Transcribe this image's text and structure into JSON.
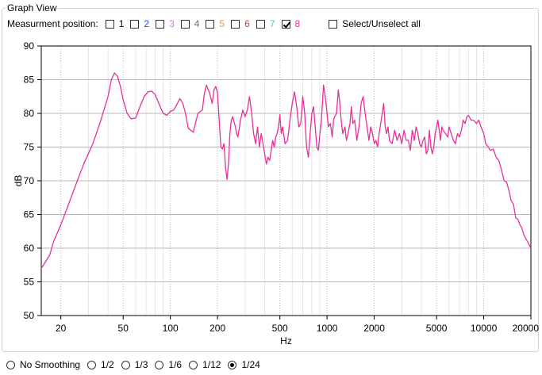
{
  "window": {
    "group_title": "Graph View"
  },
  "measurement": {
    "label": "Measurment position:",
    "positions": [
      {
        "label": "1",
        "color": "#000000",
        "checked": false
      },
      {
        "label": "2",
        "color": "#1f4fd6",
        "checked": false
      },
      {
        "label": "3",
        "color": "#c77fe0",
        "checked": false
      },
      {
        "label": "4",
        "color": "#2e9a2e",
        "checked": false
      },
      {
        "label": "5",
        "color": "#e6a020",
        "checked": false
      },
      {
        "label": "6",
        "color": "#e03030",
        "checked": false
      },
      {
        "label": "7",
        "color": "#40c8c8",
        "checked": false
      },
      {
        "label": "8",
        "color": "#e6309a",
        "checked": true
      }
    ],
    "select_all_label": "Select/Unselect all"
  },
  "smoothing": {
    "options": [
      "No Smoothing",
      "1/2",
      "1/3",
      "1/6",
      "1/12",
      "1/24"
    ],
    "selected": "1/24"
  },
  "chart_data": {
    "type": "line",
    "xscale": "log",
    "xlim": [
      15,
      20000
    ],
    "ylim": [
      50,
      90
    ],
    "xlabel": "Hz",
    "ylabel": "dB",
    "xticks": [
      20,
      50,
      100,
      200,
      500,
      1000,
      2000,
      5000,
      10000,
      20000
    ],
    "yticks": [
      50,
      55,
      60,
      65,
      70,
      75,
      80,
      85,
      90
    ],
    "grid": true,
    "series": [
      {
        "color": "#e6309a",
        "points": [
          [
            15,
            57
          ],
          [
            16,
            58
          ],
          [
            17,
            59
          ],
          [
            18,
            61
          ],
          [
            20,
            63.5
          ],
          [
            22,
            66
          ],
          [
            25,
            69.5
          ],
          [
            28,
            72.5
          ],
          [
            32,
            75.5
          ],
          [
            36,
            79
          ],
          [
            40,
            82.5
          ],
          [
            42,
            85
          ],
          [
            44,
            86
          ],
          [
            46,
            85.5
          ],
          [
            48,
            84
          ],
          [
            50,
            82
          ],
          [
            53,
            80
          ],
          [
            56,
            79.2
          ],
          [
            60,
            79.3
          ],
          [
            64,
            81
          ],
          [
            68,
            82.5
          ],
          [
            72,
            83.2
          ],
          [
            76,
            83.3
          ],
          [
            80,
            82.8
          ],
          [
            85,
            81.3
          ],
          [
            90,
            80
          ],
          [
            95,
            79.7
          ],
          [
            100,
            80.3
          ],
          [
            105,
            80.5
          ],
          [
            110,
            81.3
          ],
          [
            115,
            82.2
          ],
          [
            120,
            81.5
          ],
          [
            125,
            80
          ],
          [
            130,
            77.8
          ],
          [
            140,
            77.2
          ],
          [
            150,
            80
          ],
          [
            160,
            80.5
          ],
          [
            165,
            83
          ],
          [
            170,
            84.2
          ],
          [
            178,
            83
          ],
          [
            185,
            81.5
          ],
          [
            190,
            83.5
          ],
          [
            195,
            84
          ],
          [
            200,
            83
          ],
          [
            205,
            79
          ],
          [
            210,
            75
          ],
          [
            215,
            74.7
          ],
          [
            220,
            75.5
          ],
          [
            225,
            72
          ],
          [
            230,
            70.2
          ],
          [
            235,
            72.5
          ],
          [
            240,
            77
          ],
          [
            245,
            79
          ],
          [
            250,
            79.5
          ],
          [
            260,
            78
          ],
          [
            265,
            77
          ],
          [
            270,
            76.5
          ],
          [
            280,
            79
          ],
          [
            290,
            80.5
          ],
          [
            300,
            79.5
          ],
          [
            310,
            80.5
          ],
          [
            320,
            82.5
          ],
          [
            330,
            80
          ],
          [
            340,
            77
          ],
          [
            350,
            75.5
          ],
          [
            360,
            78
          ],
          [
            370,
            75
          ],
          [
            380,
            77
          ],
          [
            390,
            75.5
          ],
          [
            400,
            74
          ],
          [
            410,
            72.5
          ],
          [
            420,
            73.5
          ],
          [
            430,
            73
          ],
          [
            440,
            74.5
          ],
          [
            450,
            76
          ],
          [
            460,
            75
          ],
          [
            470,
            76.5
          ],
          [
            480,
            77
          ],
          [
            490,
            78
          ],
          [
            500,
            79.8
          ],
          [
            510,
            77
          ],
          [
            520,
            78
          ],
          [
            540,
            75.5
          ],
          [
            560,
            76
          ],
          [
            580,
            79
          ],
          [
            600,
            81.5
          ],
          [
            620,
            83.2
          ],
          [
            640,
            81
          ],
          [
            660,
            78
          ],
          [
            680,
            78.5
          ],
          [
            700,
            82.5
          ],
          [
            720,
            80
          ],
          [
            740,
            75
          ],
          [
            760,
            73.5
          ],
          [
            780,
            77
          ],
          [
            800,
            80
          ],
          [
            820,
            81
          ],
          [
            840,
            78
          ],
          [
            860,
            75
          ],
          [
            880,
            74.5
          ],
          [
            900,
            77
          ],
          [
            920,
            79
          ],
          [
            950,
            84.2
          ],
          [
            980,
            82
          ],
          [
            1000,
            80
          ],
          [
            1020,
            78
          ],
          [
            1050,
            78.5
          ],
          [
            1080,
            76.5
          ],
          [
            1100,
            79
          ],
          [
            1120,
            79.5
          ],
          [
            1150,
            80
          ],
          [
            1180,
            83.5
          ],
          [
            1200,
            82
          ],
          [
            1230,
            79
          ],
          [
            1260,
            77
          ],
          [
            1300,
            78
          ],
          [
            1330,
            76
          ],
          [
            1360,
            77
          ],
          [
            1400,
            78.5
          ],
          [
            1430,
            81
          ],
          [
            1460,
            78.5
          ],
          [
            1500,
            79
          ],
          [
            1550,
            76
          ],
          [
            1600,
            78
          ],
          [
            1650,
            81.5
          ],
          [
            1700,
            82.5
          ],
          [
            1750,
            80
          ],
          [
            1800,
            78
          ],
          [
            1850,
            76
          ],
          [
            1900,
            78
          ],
          [
            1950,
            77
          ],
          [
            2000,
            75.5
          ],
          [
            2050,
            76
          ],
          [
            2100,
            75
          ],
          [
            2150,
            77
          ],
          [
            2200,
            78.5
          ],
          [
            2250,
            80
          ],
          [
            2300,
            81.5
          ],
          [
            2350,
            78
          ],
          [
            2400,
            77
          ],
          [
            2450,
            78
          ],
          [
            2500,
            76
          ],
          [
            2600,
            75.5
          ],
          [
            2700,
            77.5
          ],
          [
            2800,
            76
          ],
          [
            2900,
            77
          ],
          [
            3000,
            75.5
          ],
          [
            3100,
            77.5
          ],
          [
            3200,
            76
          ],
          [
            3300,
            76
          ],
          [
            3400,
            74.5
          ],
          [
            3500,
            77.5
          ],
          [
            3600,
            76
          ],
          [
            3700,
            78
          ],
          [
            3800,
            77
          ],
          [
            3900,
            75.5
          ],
          [
            4000,
            75
          ],
          [
            4100,
            76
          ],
          [
            4200,
            76.5
          ],
          [
            4300,
            74
          ],
          [
            4400,
            74.5
          ],
          [
            4500,
            77.5
          ],
          [
            4600,
            75
          ],
          [
            4700,
            74
          ],
          [
            4800,
            75
          ],
          [
            4900,
            77
          ],
          [
            5000,
            78
          ],
          [
            5100,
            79
          ],
          [
            5200,
            77.5
          ],
          [
            5300,
            76
          ],
          [
            5400,
            78
          ],
          [
            5500,
            77.5
          ],
          [
            5700,
            77
          ],
          [
            5900,
            76.5
          ],
          [
            6000,
            78
          ],
          [
            6200,
            77
          ],
          [
            6400,
            76
          ],
          [
            6600,
            75.5
          ],
          [
            6800,
            77
          ],
          [
            7000,
            76.5
          ],
          [
            7200,
            77.5
          ],
          [
            7400,
            79
          ],
          [
            7600,
            78.5
          ],
          [
            7800,
            79.5
          ],
          [
            8000,
            79.7
          ],
          [
            8300,
            79
          ],
          [
            8600,
            79
          ],
          [
            9000,
            78.5
          ],
          [
            9300,
            79
          ],
          [
            9600,
            78
          ],
          [
            10000,
            77
          ],
          [
            10300,
            75.5
          ],
          [
            10700,
            75
          ],
          [
            11000,
            74.5
          ],
          [
            11500,
            74.7
          ],
          [
            12000,
            73.5
          ],
          [
            12500,
            73
          ],
          [
            13000,
            71.5
          ],
          [
            13500,
            70
          ],
          [
            14000,
            69.8
          ],
          [
            14500,
            68.5
          ],
          [
            15000,
            67
          ],
          [
            15500,
            66.5
          ],
          [
            16000,
            64.5
          ],
          [
            16500,
            64.3
          ],
          [
            17000,
            63.5
          ],
          [
            17500,
            63
          ],
          [
            18000,
            62
          ],
          [
            18500,
            61.5
          ],
          [
            19000,
            61
          ],
          [
            19500,
            60.5
          ],
          [
            20000,
            60
          ]
        ]
      }
    ]
  }
}
